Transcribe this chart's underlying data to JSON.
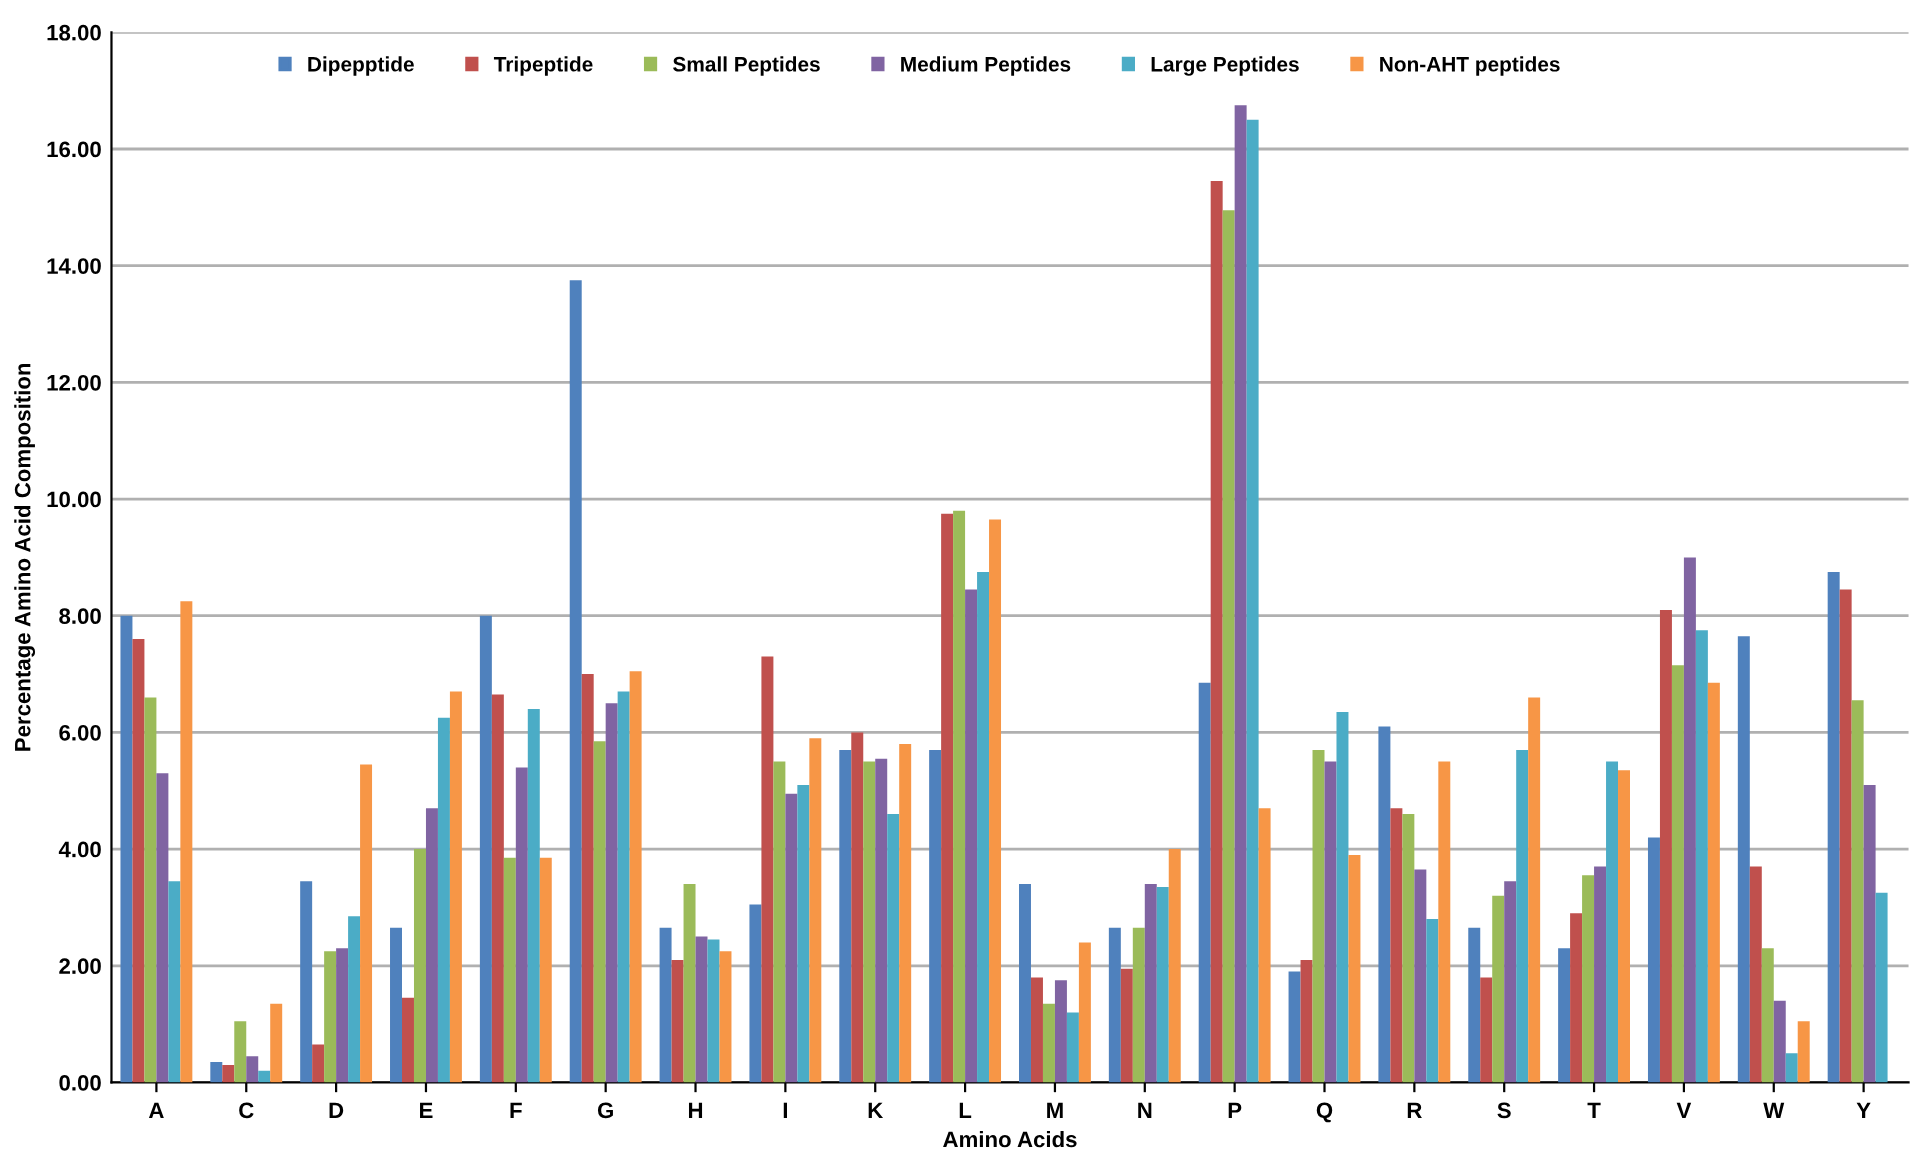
{
  "chart_data": {
    "type": "bar",
    "xlabel": "Amino Acids",
    "ylabel": "Percentage Amino Acid Composition",
    "categories": [
      "A",
      "C",
      "D",
      "E",
      "F",
      "G",
      "H",
      "I",
      "K",
      "L",
      "M",
      "N",
      "P",
      "Q",
      "R",
      "S",
      "T",
      "V",
      "W",
      "Y"
    ],
    "series": [
      {
        "name": "Dipepptide",
        "color": "#4f81bd",
        "values": [
          8.0,
          0.35,
          3.45,
          2.65,
          8.0,
          13.75,
          2.65,
          3.05,
          5.7,
          5.7,
          3.4,
          2.65,
          6.85,
          1.9,
          6.1,
          2.65,
          2.3,
          4.2,
          7.65,
          8.75
        ]
      },
      {
        "name": "Tripeptide",
        "color": "#c0504d",
        "values": [
          7.6,
          0.3,
          0.65,
          1.45,
          6.65,
          7.0,
          2.1,
          7.3,
          6.0,
          9.75,
          1.8,
          1.95,
          15.45,
          2.1,
          4.7,
          1.8,
          2.9,
          8.1,
          3.7,
          8.45
        ]
      },
      {
        "name": "Small Peptides",
        "color": "#9bbb59",
        "values": [
          6.6,
          1.05,
          2.25,
          4.0,
          3.85,
          5.85,
          3.4,
          5.5,
          5.5,
          9.8,
          1.35,
          2.65,
          14.95,
          5.7,
          4.6,
          3.2,
          3.55,
          7.15,
          2.3,
          6.55
        ]
      },
      {
        "name": "Medium Peptides",
        "color": "#8064a2",
        "values": [
          5.3,
          0.45,
          2.3,
          4.7,
          5.4,
          6.5,
          2.5,
          4.95,
          5.55,
          8.45,
          1.75,
          3.4,
          16.75,
          5.5,
          3.65,
          3.45,
          3.7,
          9.0,
          1.4,
          5.1
        ]
      },
      {
        "name": "Large Peptides",
        "color": "#4bacc6",
        "values": [
          3.45,
          0.2,
          2.85,
          6.25,
          6.4,
          6.7,
          2.45,
          5.1,
          4.6,
          8.75,
          1.2,
          3.35,
          16.5,
          6.35,
          2.8,
          5.7,
          5.5,
          7.75,
          0.5,
          3.25
        ]
      },
      {
        "name": "Non-AHT peptides",
        "color": "#f79646",
        "values": [
          8.25,
          1.35,
          5.45,
          6.7,
          3.85,
          7.05,
          2.25,
          5.9,
          5.8,
          9.65,
          2.4,
          4.0,
          4.7,
          3.9,
          5.5,
          6.6,
          5.35,
          6.85,
          1.05,
          null
        ]
      }
    ],
    "ylim": [
      0,
      18
    ],
    "yticks": [
      {
        "value": 0,
        "label": "0.00"
      },
      {
        "value": 2,
        "label": "2.00"
      },
      {
        "value": 4,
        "label": "4.00"
      },
      {
        "value": 6,
        "label": "6.00"
      },
      {
        "value": 8,
        "label": "8.00"
      },
      {
        "value": 10,
        "label": "10.00"
      },
      {
        "value": 12,
        "label": "12.00"
      },
      {
        "value": 14,
        "label": "14.00"
      },
      {
        "value": 16,
        "label": "16.00"
      },
      {
        "value": 18,
        "label": "18.00"
      }
    ],
    "grid": "y",
    "legend": "top"
  }
}
